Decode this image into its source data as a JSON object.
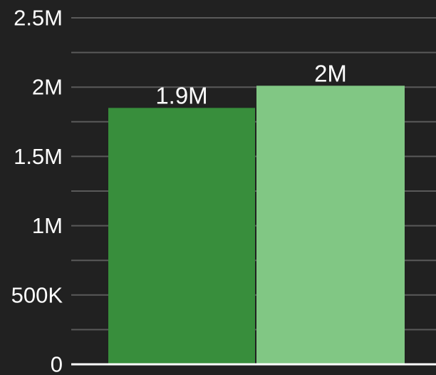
{
  "chart_data": {
    "type": "bar",
    "title": "",
    "xlabel": "",
    "ylabel": "",
    "ylim": [
      0,
      2500000
    ],
    "grid": true,
    "legend": "none",
    "yticks": [
      {
        "value": 0,
        "label": "0"
      },
      {
        "value": 500000,
        "label": "500K"
      },
      {
        "value": 1000000,
        "label": "1M"
      },
      {
        "value": 1500000,
        "label": "1.5M"
      },
      {
        "value": 2000000,
        "label": "2M"
      },
      {
        "value": 2500000,
        "label": "2.5M"
      }
    ],
    "minor_gridlines": [
      250000,
      750000,
      1250000,
      1750000,
      2250000
    ],
    "bars": [
      {
        "value": 1850000,
        "label": "1.9M",
        "color": "#388e3c"
      },
      {
        "value": 2010000,
        "label": "2M",
        "color": "#81c784"
      }
    ]
  },
  "colors": {
    "background": "#212121",
    "gridline": "#5a5a5a",
    "axis": "#ffffff",
    "text": "#ffffff"
  }
}
